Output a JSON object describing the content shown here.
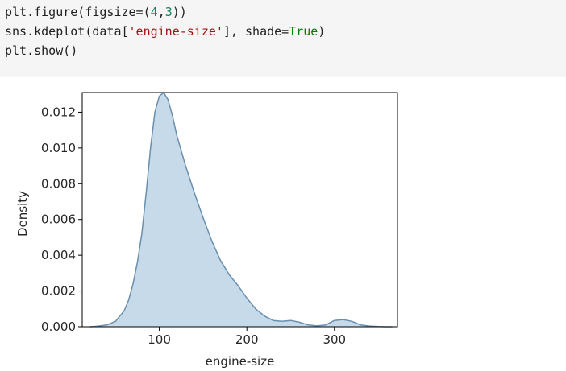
{
  "code_cell": {
    "lines": [
      [
        {
          "text": "plt.figure(figsize=(",
          "color": "#202020"
        },
        {
          "text": "4",
          "color": "#098658"
        },
        {
          "text": ",",
          "color": "#202020"
        },
        {
          "text": "3",
          "color": "#098658"
        },
        {
          "text": "))",
          "color": "#202020"
        }
      ],
      [
        {
          "text": "sns.kdeplot(data[",
          "color": "#202020"
        },
        {
          "text": "'engine-size'",
          "color": "#a31515"
        },
        {
          "text": "], shade=",
          "color": "#202020"
        },
        {
          "text": "True",
          "color": "#008000"
        },
        {
          "text": ")",
          "color": "#202020"
        }
      ],
      [
        {
          "text": "plt.show()",
          "color": "#202020"
        }
      ]
    ]
  },
  "chart_data": {
    "type": "area",
    "title": "",
    "xlabel": "engine-size",
    "ylabel": "Density",
    "xlim": [
      12,
      372
    ],
    "ylim": [
      0,
      0.0131
    ],
    "xticks": [
      100,
      200,
      300
    ],
    "xtick_labels": [
      "100",
      "200",
      "300"
    ],
    "yticks": [
      0.0,
      0.002,
      0.004,
      0.006,
      0.008,
      0.01,
      0.012
    ],
    "ytick_labels": [
      "0.000",
      "0.002",
      "0.004",
      "0.006",
      "0.008",
      "0.010",
      "0.012"
    ],
    "grid": false,
    "legend": "none",
    "fill_color": "#c6dae9",
    "line_color": "#6a8fae",
    "x": [
      21,
      30,
      40,
      50,
      60,
      65,
      70,
      75,
      80,
      85,
      90,
      95,
      100,
      105,
      110,
      115,
      120,
      130,
      140,
      150,
      160,
      170,
      180,
      190,
      200,
      210,
      220,
      230,
      240,
      250,
      260,
      270,
      280,
      290,
      300,
      310,
      320,
      330,
      340,
      350,
      360,
      366
    ],
    "y": [
      0.0,
      3e-05,
      0.0001,
      0.0003,
      0.0009,
      0.0015,
      0.0024,
      0.0036,
      0.0052,
      0.0075,
      0.01,
      0.012,
      0.0129,
      0.0131,
      0.0127,
      0.0118,
      0.0107,
      0.009,
      0.0075,
      0.0061,
      0.0048,
      0.0037,
      0.0029,
      0.0023,
      0.0016,
      0.001,
      0.0006,
      0.00035,
      0.0003,
      0.00035,
      0.00025,
      0.0001,
      5e-05,
      0.0001,
      0.00035,
      0.0004,
      0.0003,
      0.0001,
      4e-05,
      1e-05,
      0.0,
      0.0
    ]
  }
}
